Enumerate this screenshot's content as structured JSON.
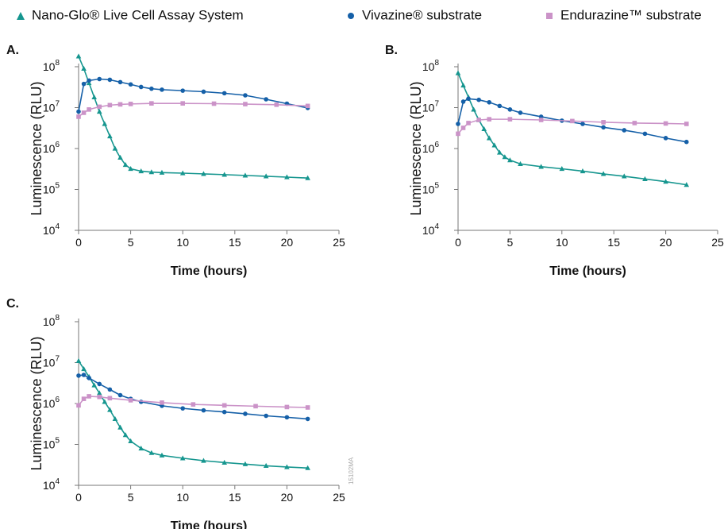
{
  "legend": {
    "items": [
      {
        "label": "Nano-Glo® Live Cell Assay System",
        "marker": "triangle",
        "color": "#16968f"
      },
      {
        "label": "Vivazine® substrate",
        "marker": "circle",
        "color": "#1560a8"
      },
      {
        "label": "Endurazine™ substrate",
        "marker": "square",
        "color": "#cb93c8"
      }
    ]
  },
  "side_code": "15102MA",
  "chart_data": [
    {
      "type": "line",
      "panel_label": "A.",
      "xlabel": "Time (hours)",
      "ylabel": "Luminescence (RLU)",
      "xlim": [
        0,
        25
      ],
      "ylim": [
        10000,
        100000000
      ],
      "yscale": "log",
      "xticks": [
        0,
        5,
        10,
        15,
        20,
        25
      ],
      "yticks": [
        10000,
        100000,
        1000000,
        10000000,
        100000000
      ],
      "ytick_labels": [
        {
          "base": "10",
          "exp": "4"
        },
        {
          "base": "10",
          "exp": "5"
        },
        {
          "base": "10",
          "exp": "6"
        },
        {
          "base": "10",
          "exp": "7"
        },
        {
          "base": "10",
          "exp": "8"
        }
      ],
      "grid": false,
      "series": [
        {
          "name": "Nano-Glo® Live Cell Assay System",
          "marker": "triangle",
          "color": "#16968f",
          "points": [
            [
              0,
              180000000
            ],
            [
              0.5,
              90000000
            ],
            [
              1,
              40000000
            ],
            [
              1.5,
              18000000
            ],
            [
              2,
              8000000
            ],
            [
              2.5,
              4000000
            ],
            [
              3,
              2000000
            ],
            [
              3.5,
              1000000
            ],
            [
              4,
              600000
            ],
            [
              4.5,
              400000
            ],
            [
              5,
              320000
            ],
            [
              6,
              280000
            ],
            [
              7,
              265000
            ],
            [
              8,
              258000
            ],
            [
              10,
              250000
            ],
            [
              12,
              240000
            ],
            [
              14,
              230000
            ],
            [
              16,
              220000
            ],
            [
              18,
              210000
            ],
            [
              20,
              200000
            ],
            [
              22,
              190000
            ]
          ]
        },
        {
          "name": "Vivazine® substrate",
          "marker": "circle",
          "color": "#1560a8",
          "points": [
            [
              0,
              8000000
            ],
            [
              0.5,
              38000000
            ],
            [
              1,
              46000000
            ],
            [
              2,
              50000000
            ],
            [
              3,
              48000000
            ],
            [
              4,
              42000000
            ],
            [
              5,
              37000000
            ],
            [
              6,
              32000000
            ],
            [
              7,
              29000000
            ],
            [
              8,
              27500000
            ],
            [
              10,
              26000000
            ],
            [
              12,
              24500000
            ],
            [
              14,
              22500000
            ],
            [
              16,
              20000000
            ],
            [
              18,
              16000000
            ],
            [
              20,
              12500000
            ],
            [
              22,
              9800000
            ]
          ]
        },
        {
          "name": "Endurazine™ substrate",
          "marker": "square",
          "color": "#cb93c8",
          "points": [
            [
              0,
              6000000
            ],
            [
              0.5,
              7500000
            ],
            [
              1,
              9000000
            ],
            [
              2,
              10500000
            ],
            [
              3,
              11500000
            ],
            [
              4,
              12000000
            ],
            [
              5,
              12300000
            ],
            [
              7,
              12700000
            ],
            [
              10,
              12700000
            ],
            [
              13,
              12500000
            ],
            [
              16,
              12200000
            ],
            [
              19,
              11800000
            ],
            [
              22,
              11000000
            ]
          ]
        }
      ]
    },
    {
      "type": "line",
      "panel_label": "B.",
      "xlabel": "Time (hours)",
      "ylabel": "Luminescence (RLU)",
      "xlim": [
        0,
        25
      ],
      "ylim": [
        10000,
        100000000
      ],
      "yscale": "log",
      "xticks": [
        0,
        5,
        10,
        15,
        20,
        25
      ],
      "yticks": [
        10000,
        100000,
        1000000,
        10000000,
        100000000
      ],
      "ytick_labels": [
        {
          "base": "10",
          "exp": "4"
        },
        {
          "base": "10",
          "exp": "5"
        },
        {
          "base": "10",
          "exp": "6"
        },
        {
          "base": "10",
          "exp": "7"
        },
        {
          "base": "10",
          "exp": "8"
        }
      ],
      "grid": false,
      "series": [
        {
          "name": "Nano-Glo® Live Cell Assay System",
          "marker": "triangle",
          "color": "#16968f",
          "points": [
            [
              0,
              70000000
            ],
            [
              0.5,
              35000000
            ],
            [
              1,
              18000000
            ],
            [
              1.5,
              9000000
            ],
            [
              2,
              5000000
            ],
            [
              2.5,
              3000000
            ],
            [
              3,
              1800000
            ],
            [
              3.5,
              1200000
            ],
            [
              4,
              800000
            ],
            [
              4.5,
              620000
            ],
            [
              5,
              520000
            ],
            [
              6,
              420000
            ],
            [
              8,
              360000
            ],
            [
              10,
              320000
            ],
            [
              12,
              280000
            ],
            [
              14,
              240000
            ],
            [
              16,
              210000
            ],
            [
              18,
              180000
            ],
            [
              20,
              155000
            ],
            [
              22,
              130000
            ]
          ]
        },
        {
          "name": "Vivazine® substrate",
          "marker": "circle",
          "color": "#1560a8",
          "points": [
            [
              0,
              4000000
            ],
            [
              0.5,
              14000000
            ],
            [
              1,
              16500000
            ],
            [
              2,
              15500000
            ],
            [
              3,
              13500000
            ],
            [
              4,
              11000000
            ],
            [
              5,
              9000000
            ],
            [
              6,
              7500000
            ],
            [
              8,
              6000000
            ],
            [
              10,
              4800000
            ],
            [
              12,
              4000000
            ],
            [
              14,
              3300000
            ],
            [
              16,
              2800000
            ],
            [
              18,
              2300000
            ],
            [
              20,
              1800000
            ],
            [
              22,
              1450000
            ]
          ]
        },
        {
          "name": "Endurazine™ substrate",
          "marker": "square",
          "color": "#cb93c8",
          "points": [
            [
              0,
              2300000
            ],
            [
              0.5,
              3200000
            ],
            [
              1,
              4200000
            ],
            [
              2,
              5000000
            ],
            [
              3,
              5200000
            ],
            [
              5,
              5200000
            ],
            [
              8,
              5000000
            ],
            [
              11,
              4700000
            ],
            [
              14,
              4400000
            ],
            [
              17,
              4200000
            ],
            [
              20,
              4100000
            ],
            [
              22,
              4000000
            ]
          ]
        }
      ]
    },
    {
      "type": "line",
      "panel_label": "C.",
      "xlabel": "Time (hours)",
      "ylabel": "Luminescence (RLU)",
      "xlim": [
        0,
        25
      ],
      "ylim": [
        10000,
        100000000
      ],
      "yscale": "log",
      "xticks": [
        0,
        5,
        10,
        15,
        20,
        25
      ],
      "yticks": [
        10000,
        100000,
        1000000,
        10000000,
        100000000
      ],
      "ytick_labels": [
        {
          "base": "10",
          "exp": "4"
        },
        {
          "base": "10",
          "exp": "5"
        },
        {
          "base": "10",
          "exp": "6"
        },
        {
          "base": "10",
          "exp": "7"
        },
        {
          "base": "10",
          "exp": "8"
        }
      ],
      "grid": false,
      "series": [
        {
          "name": "Nano-Glo® Live Cell Assay System",
          "marker": "triangle",
          "color": "#16968f",
          "points": [
            [
              0,
              11000000
            ],
            [
              0.5,
              7000000
            ],
            [
              1,
              4500000
            ],
            [
              1.5,
              2800000
            ],
            [
              2,
              1800000
            ],
            [
              2.5,
              1100000
            ],
            [
              3,
              700000
            ],
            [
              3.5,
              420000
            ],
            [
              4,
              260000
            ],
            [
              4.5,
              170000
            ],
            [
              5,
              120000
            ],
            [
              6,
              80000
            ],
            [
              7,
              62000
            ],
            [
              8,
              54000
            ],
            [
              10,
              46000
            ],
            [
              12,
              40000
            ],
            [
              14,
              36000
            ],
            [
              16,
              33000
            ],
            [
              18,
              30000
            ],
            [
              20,
              28000
            ],
            [
              22,
              26500
            ]
          ]
        },
        {
          "name": "Vivazine® substrate",
          "marker": "circle",
          "color": "#1560a8",
          "points": [
            [
              0,
              4800000
            ],
            [
              0.5,
              5000000
            ],
            [
              1,
              4200000
            ],
            [
              2,
              3000000
            ],
            [
              3,
              2200000
            ],
            [
              4,
              1600000
            ],
            [
              5,
              1300000
            ],
            [
              6,
              1100000
            ],
            [
              8,
              880000
            ],
            [
              10,
              760000
            ],
            [
              12,
              680000
            ],
            [
              14,
              620000
            ],
            [
              16,
              560000
            ],
            [
              18,
              500000
            ],
            [
              20,
              460000
            ],
            [
              22,
              420000
            ]
          ]
        },
        {
          "name": "Endurazine™ substrate",
          "marker": "square",
          "color": "#cb93c8",
          "points": [
            [
              0,
              900000
            ],
            [
              0.5,
              1300000
            ],
            [
              1,
              1500000
            ],
            [
              2,
              1450000
            ],
            [
              3,
              1350000
            ],
            [
              5,
              1200000
            ],
            [
              8,
              1050000
            ],
            [
              11,
              950000
            ],
            [
              14,
              900000
            ],
            [
              17,
              860000
            ],
            [
              20,
              820000
            ],
            [
              22,
              800000
            ]
          ]
        }
      ]
    }
  ]
}
